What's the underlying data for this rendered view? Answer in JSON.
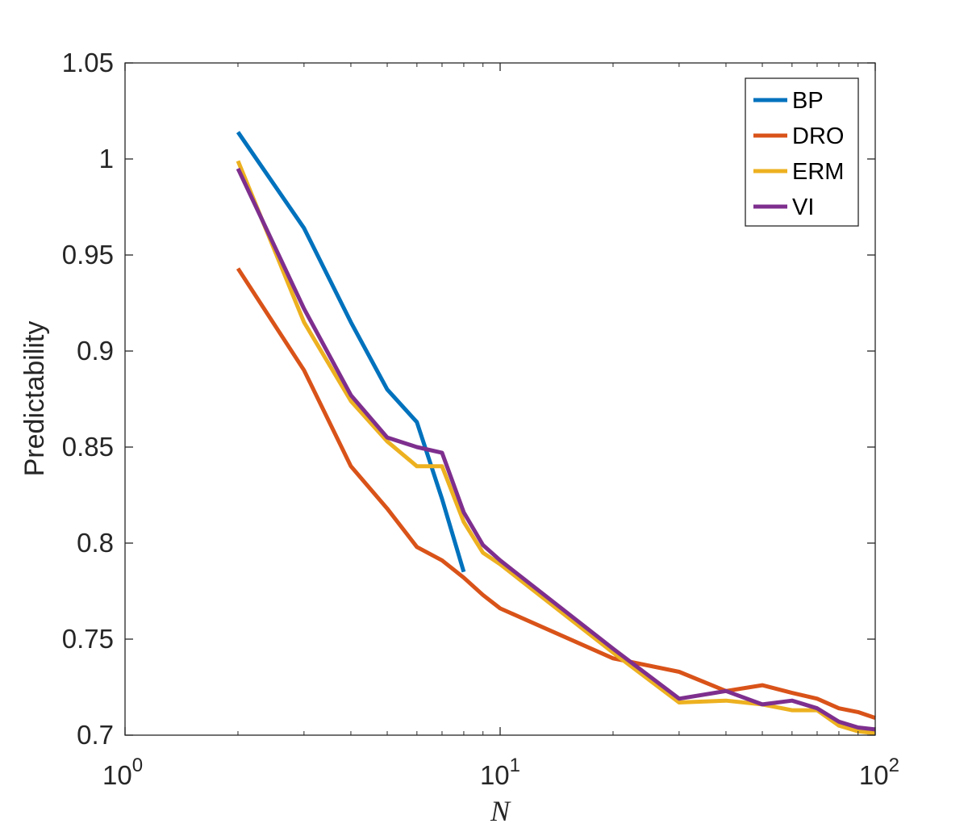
{
  "chart_data": {
    "type": "line",
    "xscale": "log",
    "xlim": [
      1,
      100
    ],
    "ylim": [
      0.7,
      1.05
    ],
    "xlabel": "N",
    "ylabel": "Predictability",
    "x_ticks": [
      {
        "base": "10",
        "exp": "0",
        "value": 1
      },
      {
        "base": "10",
        "exp": "1",
        "value": 10
      },
      {
        "base": "10",
        "exp": "2",
        "value": 100
      }
    ],
    "y_ticks": [
      "0.7",
      "0.75",
      "0.8",
      "0.85",
      "0.9",
      "0.95",
      "1",
      "1.05"
    ],
    "legend": {
      "position": "top-right"
    },
    "series": [
      {
        "name": "BP",
        "color": "#0072BD",
        "x": [
          2,
          3,
          4,
          5,
          6,
          7,
          8
        ],
        "y": [
          1.014,
          0.964,
          0.915,
          0.88,
          0.863,
          0.823,
          0.785
        ]
      },
      {
        "name": "DRO",
        "color": "#D95319",
        "x": [
          2,
          3,
          4,
          5,
          6,
          7,
          8,
          9,
          10,
          20,
          30,
          40,
          50,
          60,
          70,
          80,
          90,
          100
        ],
        "y": [
          0.943,
          0.89,
          0.84,
          0.818,
          0.798,
          0.791,
          0.782,
          0.773,
          0.766,
          0.74,
          0.733,
          0.723,
          0.726,
          0.722,
          0.719,
          0.714,
          0.712,
          0.709
        ]
      },
      {
        "name": "ERM",
        "color": "#EDB120",
        "x": [
          2,
          3,
          4,
          5,
          6,
          7,
          8,
          9,
          10,
          20,
          30,
          40,
          50,
          60,
          70,
          80,
          90,
          100
        ],
        "y": [
          0.999,
          0.915,
          0.874,
          0.853,
          0.84,
          0.84,
          0.811,
          0.795,
          0.789,
          0.743,
          0.717,
          0.718,
          0.716,
          0.713,
          0.713,
          0.705,
          0.702,
          0.701
        ]
      },
      {
        "name": "VI",
        "color": "#7E2F8E",
        "x": [
          2,
          3,
          4,
          5,
          6,
          7,
          8,
          9,
          10,
          20,
          30,
          40,
          50,
          60,
          70,
          80,
          90,
          100
        ],
        "y": [
          0.995,
          0.922,
          0.877,
          0.855,
          0.85,
          0.847,
          0.816,
          0.799,
          0.791,
          0.745,
          0.719,
          0.723,
          0.716,
          0.718,
          0.714,
          0.707,
          0.704,
          0.703
        ]
      }
    ]
  }
}
